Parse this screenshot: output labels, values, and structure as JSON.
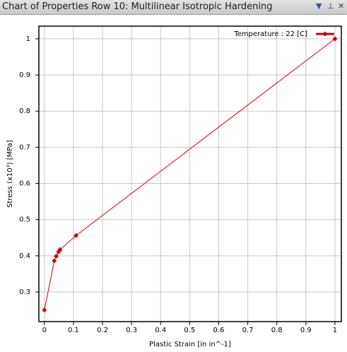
{
  "chart_data": {
    "type": "line",
    "title": "Chart of Properties Row 10: Multilinear Isotropic Hardening",
    "x_label": "Plastic Strain  [in in^-1]",
    "y_label": "Stress  (x10³)  [MPa]",
    "x": [
      0,
      0.034,
      0.041,
      0.049,
      0.054,
      0.109,
      1
    ],
    "series": [
      {
        "name": "Temperature : 22 [C]",
        "color": "#cc0000",
        "values": [
          0.25,
          0.386,
          0.399,
          0.411,
          0.417,
          0.456,
          1
        ]
      }
    ],
    "xlim": [
      -0.019,
      1.022
    ],
    "xticks": [
      0,
      0.1,
      0.2,
      0.3,
      0.4,
      0.5,
      0.6,
      0.7,
      0.8,
      0.9,
      1
    ],
    "ylim": [
      0.218,
      1.035
    ],
    "yticks": [
      0.3,
      0.4,
      0.5,
      0.6,
      0.7,
      0.8,
      0.9,
      1
    ],
    "grid": true,
    "legend": "top-right"
  }
}
